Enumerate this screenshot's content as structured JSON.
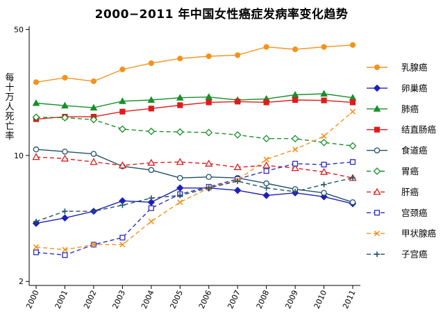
{
  "chart_data": {
    "type": "line",
    "title": "2000−2011 年中国女性癌症发病率变化趋势",
    "xlabel": "",
    "ylabel": "每十万人死亡率",
    "y_scale": "log",
    "ylim": [
      1.9,
      52
    ],
    "yticks": [
      2,
      10,
      50
    ],
    "legend_position": "right",
    "x": [
      "2000",
      "2001",
      "2002",
      "2003",
      "2004",
      "2005",
      "2006",
      "2007",
      "2008",
      "2009",
      "2010",
      "2011"
    ],
    "series": [
      {
        "name": "乳腺癌",
        "color": "#f5921e",
        "marker": "circle-filled",
        "dash": "solid",
        "values": [
          25.5,
          27.0,
          25.8,
          30.0,
          32.5,
          34.5,
          35.5,
          36.0,
          40.0,
          38.8,
          40.0,
          41.0
        ]
      },
      {
        "name": "卵巢癌",
        "color": "#1f1fb8",
        "marker": "diamond-filled",
        "dash": "solid",
        "values": [
          4.2,
          4.5,
          4.9,
          5.6,
          5.5,
          6.6,
          6.6,
          6.4,
          6.0,
          6.2,
          5.9,
          5.4
        ]
      },
      {
        "name": "肺癌",
        "color": "#17902a",
        "marker": "triangle-filled",
        "dash": "solid",
        "values": [
          19.5,
          18.9,
          18.4,
          20.0,
          20.3,
          20.9,
          21.1,
          20.3,
          20.6,
          21.7,
          22.0,
          20.9
        ]
      },
      {
        "name": "结直肠癌",
        "color": "#e01b1b",
        "marker": "square-filled",
        "dash": "solid",
        "values": [
          15.9,
          16.4,
          16.4,
          17.5,
          18.2,
          19.0,
          19.7,
          19.9,
          19.7,
          20.3,
          20.2,
          19.7
        ]
      },
      {
        "name": "食道癌",
        "color": "#1f5166",
        "marker": "circle-open",
        "dash": "solid",
        "values": [
          10.8,
          10.5,
          10.2,
          8.7,
          8.3,
          7.5,
          7.6,
          7.5,
          7.0,
          6.5,
          6.2,
          5.5
        ]
      },
      {
        "name": "胃癌",
        "color": "#17902a",
        "marker": "diamond-open",
        "dash": "dashed",
        "values": [
          16.3,
          16.2,
          15.8,
          14.0,
          13.6,
          13.5,
          13.4,
          13.0,
          12.4,
          12.4,
          11.8,
          11.3
        ]
      },
      {
        "name": "肝癌",
        "color": "#e01b1b",
        "marker": "triangle-open",
        "dash": "dashed",
        "values": [
          9.8,
          9.6,
          9.2,
          8.8,
          9.1,
          9.2,
          9.0,
          8.6,
          8.8,
          8.5,
          8.1,
          7.5
        ]
      },
      {
        "name": "宫颈癌",
        "color": "#2a2ac0",
        "marker": "square-open",
        "dash": "dashed",
        "values": [
          2.9,
          2.8,
          3.2,
          3.5,
          5.1,
          6.1,
          6.7,
          7.4,
          8.2,
          9.0,
          8.9,
          9.2
        ]
      },
      {
        "name": "甲状腺癌",
        "color": "#f5921e",
        "marker": "x",
        "dash": "dashed",
        "values": [
          3.1,
          3.0,
          3.2,
          3.2,
          4.3,
          5.5,
          6.6,
          7.3,
          9.5,
          10.8,
          12.8,
          17.5
        ]
      },
      {
        "name": "子宫癌",
        "color": "#1f5166",
        "marker": "plus",
        "dash": "dashed",
        "values": [
          4.3,
          4.9,
          4.9,
          5.3,
          5.8,
          6.0,
          6.6,
          7.2,
          6.6,
          6.3,
          6.9,
          7.5
        ]
      }
    ]
  }
}
